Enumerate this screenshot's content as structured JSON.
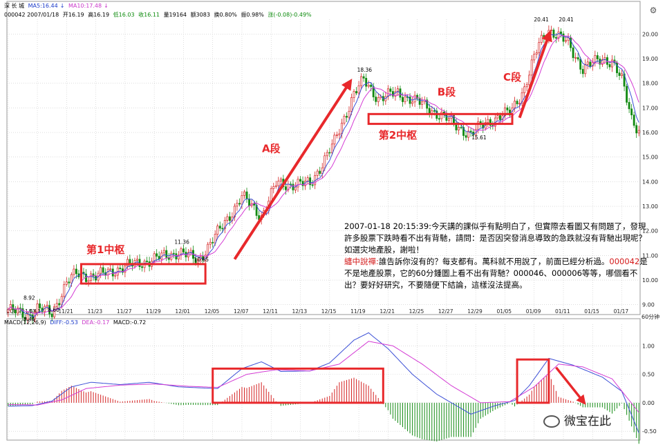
{
  "header": {
    "stock_name": "深 长 城",
    "ma5": "MA5:16.44",
    "ma10": "MA10:17.48",
    "code_date": "000042 2007/01/18",
    "open": "开16.19",
    "high": "高16.19",
    "low": "低16.03",
    "close": "收16.11",
    "volume": "量19164",
    "amount": "额3083",
    "turnover": "换0.80%",
    "amplitude": "振0.98%",
    "change": "涨(-0.08)-0.49%"
  },
  "macd_header": {
    "label": "MACD(12,26,9)",
    "diff": "DIFF:-0.53",
    "dea": "DEA:-0.17",
    "macd": "MACD:-0.72"
  },
  "period_label": "60分钟",
  "colors": {
    "up": "#d42020",
    "down": "#128a12",
    "ma_fast": "#3b4fd6",
    "ma_slow": "#d43ad4",
    "annotation": "#e8282b"
  },
  "annotation": {
    "date_line": "2007-01-18 20:15:39:",
    "question": "今天講的課似乎有點明白了，但實際去看圖又有問題了，發現許多股票下跌時看不出有背馳，請問：是否因突發消息導致的急跌就沒有背馳出現呢？如選灾地產股，謝啦！",
    "reply_label": "纏中說禪:",
    "reply_a": "誰告訴你沒有的？每支都有。萬科就不用說了，前面已經分析過。",
    "reply_code": "000042",
    "reply_b": "是不是地產股票，它的60分鍾圖上看不出有背馳？000046、000006等等，哪個看不出？要好好研究，不要隨便下結論，這樣沒法提高。"
  },
  "watermark": "微宝在此",
  "chart_data": [
    {
      "type": "candlestick",
      "panel": "price",
      "ylim": [
        8.6,
        20.6
      ],
      "y_ticks": [
        9.0,
        10.0,
        11.0,
        12.0,
        13.0,
        14.0,
        15.0,
        16.0,
        17.0,
        18.0,
        19.0,
        20.0
      ],
      "y_tick_labels": [
        "9.00",
        "10.00",
        "11.00",
        "12.00",
        "13.00",
        "14.00",
        "15.00",
        "16.00",
        "17.00",
        "18.00",
        "19.00",
        "20.00"
      ],
      "x_tick_labels": [
        "2006/11/14",
        "11/17",
        "11/21",
        "11/23",
        "11/27",
        "11/29",
        "12/01",
        "12/05",
        "12/07",
        "12/11",
        "12/13",
        "12/15",
        "11/19",
        "12/21",
        "12/25",
        "12/27",
        "12/29",
        "01/05",
        "01/09",
        "01/11",
        "01/15",
        "01/17"
      ],
      "x_tick_index": [
        0,
        12,
        24,
        36,
        48,
        60,
        72,
        84,
        96,
        108,
        120,
        132,
        144,
        156,
        168,
        180,
        192,
        204,
        216,
        228,
        240,
        252
      ],
      "key_points": [
        {
          "index": 8,
          "value": 8.44,
          "label": "8.44"
        },
        {
          "index": 8,
          "value": 8.92,
          "label": "8.92"
        },
        {
          "index": 18,
          "value": 8.6,
          "label": "8.60"
        },
        {
          "index": 70,
          "value": 11.36,
          "label": "11.36"
        },
        {
          "index": 78,
          "value": 10.65,
          "label": "10.65"
        },
        {
          "index": 145,
          "value": 18.36,
          "label": "18.36"
        },
        {
          "index": 192,
          "value": 15.61,
          "label": "15.61"
        },
        {
          "index": 221,
          "value": 20.41,
          "label": "20.41"
        },
        {
          "index": 221,
          "value": 20.41,
          "label": "20.41"
        }
      ],
      "segment_labels": [
        {
          "text": "第1中枢",
          "index": 40,
          "value": 11.1
        },
        {
          "text": "A段",
          "index": 108,
          "value": 15.2
        },
        {
          "text": "第2中枢",
          "index": 160,
          "value": 15.75
        },
        {
          "text": "B段",
          "index": 180,
          "value": 17.5
        },
        {
          "text": "C段",
          "index": 207,
          "value": 18.1
        }
      ],
      "zones": [
        {
          "name": "第1中枢",
          "index_start": 30,
          "index_end": 81,
          "low": 9.86,
          "high": 10.65
        },
        {
          "name": "第2中枢",
          "index_start": 148,
          "index_end": 207,
          "low": 16.35,
          "high": 16.75
        }
      ],
      "arrows": [
        {
          "name": "A段",
          "from_index": 93,
          "from_value": 10.85,
          "to_index": 140,
          "to_value": 18.0
        },
        {
          "name": "C段",
          "from_index": 210,
          "from_value": 16.6,
          "to_index": 222,
          "to_value": 19.95
        }
      ],
      "anchors": [
        {
          "i": 0,
          "p": 8.8
        },
        {
          "i": 8,
          "p": 8.55
        },
        {
          "i": 12,
          "p": 8.85
        },
        {
          "i": 18,
          "p": 8.65
        },
        {
          "i": 24,
          "p": 9.9
        },
        {
          "i": 28,
          "p": 10.25
        },
        {
          "i": 36,
          "p": 10.15
        },
        {
          "i": 48,
          "p": 10.55
        },
        {
          "i": 60,
          "p": 10.85
        },
        {
          "i": 70,
          "p": 11.15
        },
        {
          "i": 78,
          "p": 10.8
        },
        {
          "i": 86,
          "p": 11.9
        },
        {
          "i": 96,
          "p": 13.4
        },
        {
          "i": 104,
          "p": 12.6
        },
        {
          "i": 110,
          "p": 13.9
        },
        {
          "i": 124,
          "p": 13.9
        },
        {
          "i": 134,
          "p": 15.6
        },
        {
          "i": 142,
          "p": 17.6
        },
        {
          "i": 146,
          "p": 18.1
        },
        {
          "i": 152,
          "p": 17.4
        },
        {
          "i": 160,
          "p": 17.6
        },
        {
          "i": 170,
          "p": 17.15
        },
        {
          "i": 180,
          "p": 16.55
        },
        {
          "i": 190,
          "p": 15.9
        },
        {
          "i": 196,
          "p": 16.4
        },
        {
          "i": 206,
          "p": 16.8
        },
        {
          "i": 212,
          "p": 17.8
        },
        {
          "i": 218,
          "p": 19.6
        },
        {
          "i": 222,
          "p": 20.2
        },
        {
          "i": 230,
          "p": 19.6
        },
        {
          "i": 236,
          "p": 18.6
        },
        {
          "i": 244,
          "p": 19.0
        },
        {
          "i": 248,
          "p": 18.9
        },
        {
          "i": 252,
          "p": 18.1
        },
        {
          "i": 256,
          "p": 16.6
        },
        {
          "i": 259,
          "p": 16.1
        }
      ]
    },
    {
      "type": "macd",
      "panel": "indicator",
      "ylim": [
        -0.68,
        1.38
      ],
      "y_ticks": [
        1.0,
        0.5,
        0.0,
        -0.5
      ],
      "y_tick_labels": [
        "1.00",
        "0.50",
        "0.00",
        "-0.50"
      ],
      "zones": [
        {
          "index_start": 84,
          "index_end": 154,
          "low": 0.0,
          "high": 0.6
        },
        {
          "index_start": 209,
          "index_end": 222,
          "low": 0.0,
          "high": 0.76
        }
      ],
      "arrows": [
        {
          "from_index": 225,
          "from_value": 0.62,
          "to_index": 236,
          "to_value": 0.03
        }
      ],
      "diff_anchors": [
        {
          "i": 0,
          "v": -0.06
        },
        {
          "i": 10,
          "v": -0.05
        },
        {
          "i": 18,
          "v": 0.03
        },
        {
          "i": 26,
          "v": 0.28
        },
        {
          "i": 34,
          "v": 0.36
        },
        {
          "i": 46,
          "v": 0.32
        },
        {
          "i": 58,
          "v": 0.36
        },
        {
          "i": 70,
          "v": 0.28
        },
        {
          "i": 80,
          "v": 0.26
        },
        {
          "i": 86,
          "v": 0.25
        },
        {
          "i": 96,
          "v": 0.6
        },
        {
          "i": 104,
          "v": 0.72
        },
        {
          "i": 112,
          "v": 0.55
        },
        {
          "i": 124,
          "v": 0.56
        },
        {
          "i": 132,
          "v": 0.7
        },
        {
          "i": 142,
          "v": 1.1
        },
        {
          "i": 148,
          "v": 1.23
        },
        {
          "i": 156,
          "v": 0.95
        },
        {
          "i": 166,
          "v": 0.5
        },
        {
          "i": 176,
          "v": 0.15
        },
        {
          "i": 190,
          "v": -0.2
        },
        {
          "i": 200,
          "v": -0.05
        },
        {
          "i": 208,
          "v": 0.04
        },
        {
          "i": 214,
          "v": 0.3
        },
        {
          "i": 222,
          "v": 0.78
        },
        {
          "i": 232,
          "v": 0.66
        },
        {
          "i": 244,
          "v": 0.45
        },
        {
          "i": 252,
          "v": 0.2
        },
        {
          "i": 259,
          "v": -0.53
        }
      ],
      "dea_anchors": [
        {
          "i": 0,
          "v": -0.03
        },
        {
          "i": 12,
          "v": -0.04
        },
        {
          "i": 22,
          "v": 0.05
        },
        {
          "i": 32,
          "v": 0.25
        },
        {
          "i": 46,
          "v": 0.31
        },
        {
          "i": 60,
          "v": 0.33
        },
        {
          "i": 74,
          "v": 0.29
        },
        {
          "i": 86,
          "v": 0.27
        },
        {
          "i": 98,
          "v": 0.5
        },
        {
          "i": 110,
          "v": 0.58
        },
        {
          "i": 124,
          "v": 0.56
        },
        {
          "i": 136,
          "v": 0.68
        },
        {
          "i": 148,
          "v": 1.08
        },
        {
          "i": 158,
          "v": 1.0
        },
        {
          "i": 170,
          "v": 0.68
        },
        {
          "i": 182,
          "v": 0.3
        },
        {
          "i": 194,
          "v": 0.0
        },
        {
          "i": 206,
          "v": 0.02
        },
        {
          "i": 216,
          "v": 0.28
        },
        {
          "i": 226,
          "v": 0.68
        },
        {
          "i": 236,
          "v": 0.63
        },
        {
          "i": 248,
          "v": 0.42
        },
        {
          "i": 259,
          "v": -0.17
        }
      ]
    }
  ]
}
